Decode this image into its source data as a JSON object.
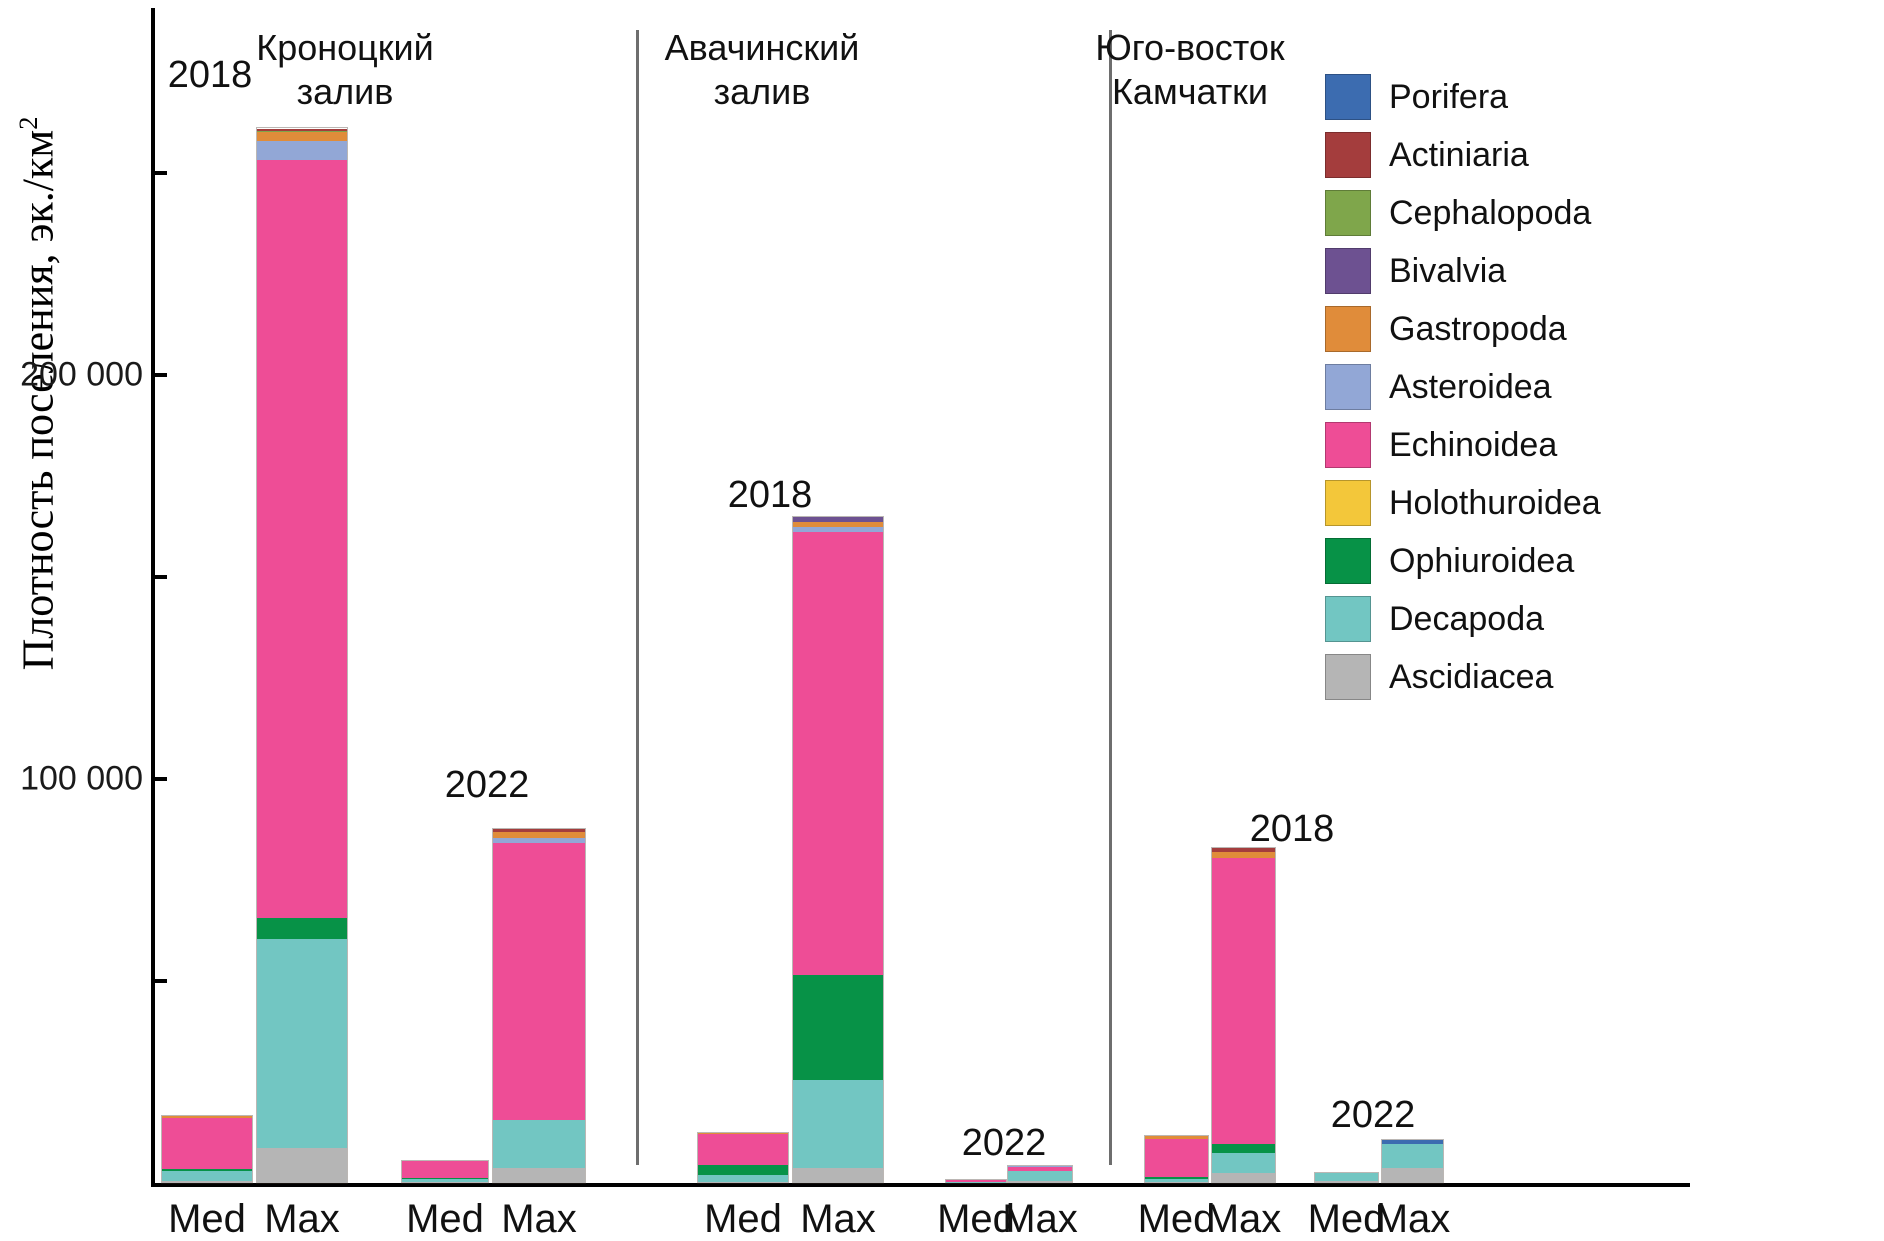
{
  "axis": {
    "y_title_main": "Плотность поселения, эк./км",
    "y_title_sup": "2"
  },
  "chart_data": {
    "type": "bar",
    "stacked": true,
    "title": "",
    "ylabel": "Плотность поселения, эк./км²",
    "unit": "эк./км²",
    "ylim": [
      0,
      290000
    ],
    "grid": false,
    "legend_position": "right",
    "yticks": [
      {
        "value": 250000,
        "label": ""
      },
      {
        "value": 200000,
        "label": "200 000"
      },
      {
        "value": 150000,
        "label": ""
      },
      {
        "value": 100000,
        "label": "100 000"
      },
      {
        "value": 50000,
        "label": ""
      }
    ],
    "taxa": [
      {
        "name": "Porifera",
        "color": "#3c6cb0"
      },
      {
        "name": "Actiniaria",
        "color": "#a43d3d"
      },
      {
        "name": "Cephalopoda",
        "color": "#7fa64b"
      },
      {
        "name": "Bivalvia",
        "color": "#6d5191"
      },
      {
        "name": "Gastropoda",
        "color": "#e08c3a"
      },
      {
        "name": "Asteroidea",
        "color": "#92a7d6"
      },
      {
        "name": "Echinoidea",
        "color": "#ee4d96"
      },
      {
        "name": "Holothuroidea",
        "color": "#f3c73a"
      },
      {
        "name": "Ophiuroidea",
        "color": "#079247"
      },
      {
        "name": "Decapoda",
        "color": "#72c6c2"
      },
      {
        "name": "Ascidiacea",
        "color": "#b5b5b5"
      }
    ],
    "stack_order_bottom_to_top": [
      "Ascidiacea",
      "Decapoda",
      "Ophiuroidea",
      "Holothuroidea",
      "Echinoidea",
      "Asteroidea",
      "Gastropoda",
      "Bivalvia",
      "Cephalopoda",
      "Actiniaria",
      "Porifera"
    ],
    "panels": [
      {
        "title_lines": [
          "Кроноцкий",
          "залив"
        ],
        "groups": [
          {
            "year": "2018",
            "bars": [
              {
                "label": "Med",
                "total": 16600,
                "segments": {
                  "Ascidiacea": 500,
                  "Decapoda": 2500,
                  "Ophiuroidea": 500,
                  "Echinoidea": 12600,
                  "Gastropoda": 500
                }
              },
              {
                "label": "Max",
                "total": 261000,
                "segments": {
                  "Ascidiacea": 8700,
                  "Decapoda": 51700,
                  "Ophiuroidea": 5200,
                  "Echinoidea": 187500,
                  "Asteroidea": 4700,
                  "Gastropoda": 2400,
                  "Cephalopoda": 300,
                  "Actiniaria": 400,
                  "Porifera": 100
                }
              }
            ]
          },
          {
            "year": "2022",
            "bars": [
              {
                "label": "Med",
                "total": 5400,
                "segments": {
                  "Ascidiacea": 300,
                  "Decapoda": 800,
                  "Ophiuroidea": 100,
                  "Echinoidea": 4200
                }
              },
              {
                "label": "Max",
                "total": 87600,
                "segments": {
                  "Ascidiacea": 3700,
                  "Decapoda": 11900,
                  "Echinoidea": 68600,
                  "Asteroidea": 1200,
                  "Gastropoda": 1500,
                  "Actiniaria": 700
                }
              }
            ]
          }
        ]
      },
      {
        "title_lines": [
          "Авачинский",
          "залив"
        ],
        "groups": [
          {
            "year": "2018",
            "bars": [
              {
                "label": "Med",
                "total": 12400,
                "segments": {
                  "Ascidiacea": 300,
                  "Decapoda": 1700,
                  "Ophiuroidea": 2500,
                  "Echinoidea": 7600,
                  "Gastropoda": 300
                }
              },
              {
                "label": "Max",
                "total": 164800,
                "segments": {
                  "Ascidiacea": 3700,
                  "Decapoda": 21800,
                  "Ophiuroidea": 26000,
                  "Echinoidea": 109700,
                  "Asteroidea": 1200,
                  "Gastropoda": 1200,
                  "Bivalvia": 1200
                }
              }
            ]
          },
          {
            "year": "2022",
            "bars": [
              {
                "label": "Med",
                "total": 700,
                "segments": {
                  "Decapoda": 300,
                  "Echinoidea": 400
                }
              },
              {
                "label": "Max",
                "total": 4200,
                "segments": {
                  "Ascidiacea": 500,
                  "Decapoda": 2500,
                  "Echinoidea": 900,
                  "Asteroidea": 300
                }
              }
            ]
          }
        ]
      },
      {
        "title_lines": [
          "Юго-восток",
          "Камчатки"
        ],
        "groups": [
          {
            "year": "2018",
            "bars": [
              {
                "label": "Med",
                "total": 11600,
                "segments": {
                  "Ascidiacea": 300,
                  "Decapoda": 700,
                  "Ophiuroidea": 500,
                  "Echinoidea": 9400,
                  "Gastropoda": 700
                }
              },
              {
                "label": "Max",
                "total": 82900,
                "segments": {
                  "Ascidiacea": 2500,
                  "Decapoda": 5000,
                  "Ophiuroidea": 2200,
                  "Echinoidea": 70700,
                  "Gastropoda": 1500,
                  "Actiniaria": 1000
                }
              }
            ]
          },
          {
            "year": "2022",
            "bars": [
              {
                "label": "Med",
                "total": 2400,
                "segments": {
                  "Ascidiacea": 400,
                  "Decapoda": 2000
                }
              },
              {
                "label": "Max",
                "total": 10600,
                "segments": {
                  "Ascidiacea": 3700,
                  "Decapoda": 6000,
                  "Porifera": 900
                }
              }
            ]
          }
        ]
      }
    ]
  }
}
